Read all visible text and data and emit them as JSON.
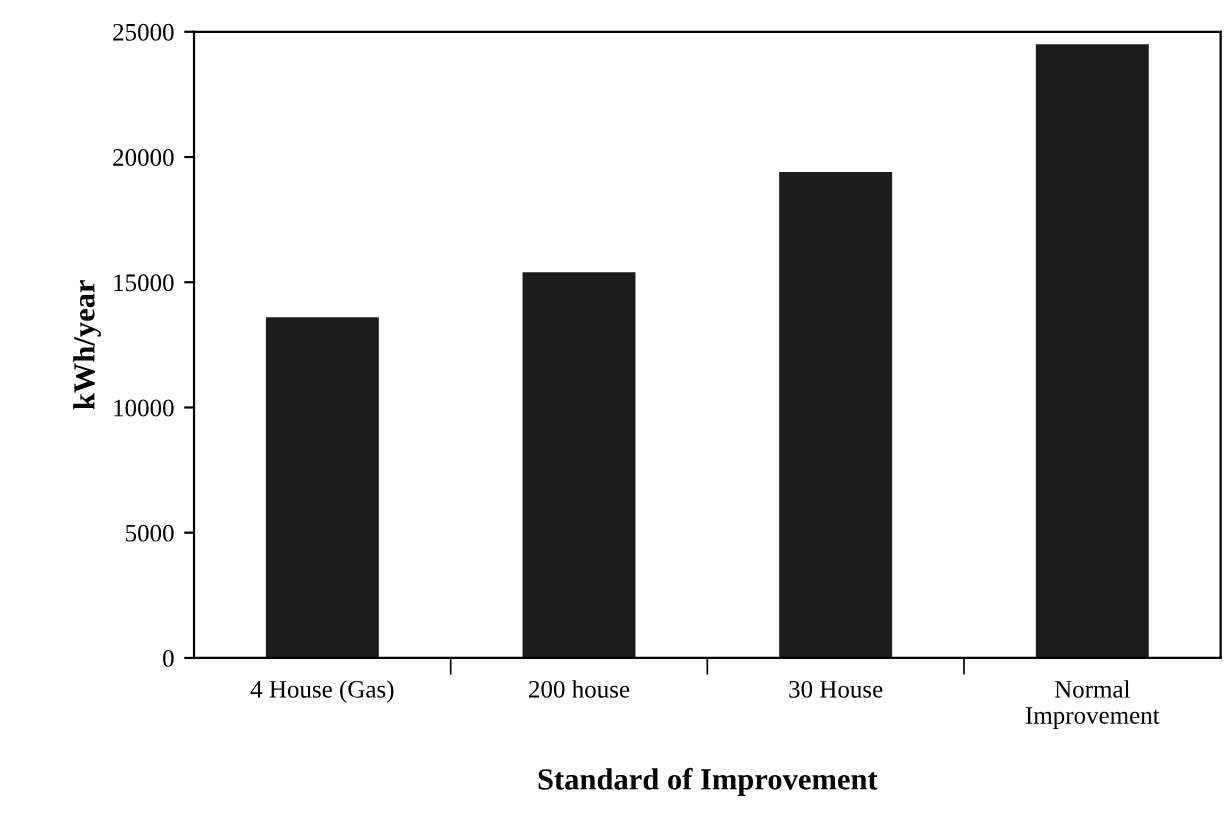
{
  "chart_data": {
    "type": "bar",
    "xlabel": "Standard of Improvement",
    "ylabel": "kWh/year",
    "categories": [
      "4 House (Gas)",
      "200 house",
      "30 House",
      "Normal\nImprovement"
    ],
    "values": [
      13600,
      15400,
      19400,
      24500
    ],
    "color": "#1c1c1c",
    "ylim": [
      0,
      25000
    ],
    "yticks": [
      0,
      5000,
      10000,
      15000,
      20000,
      25000
    ],
    "grid": false
  }
}
